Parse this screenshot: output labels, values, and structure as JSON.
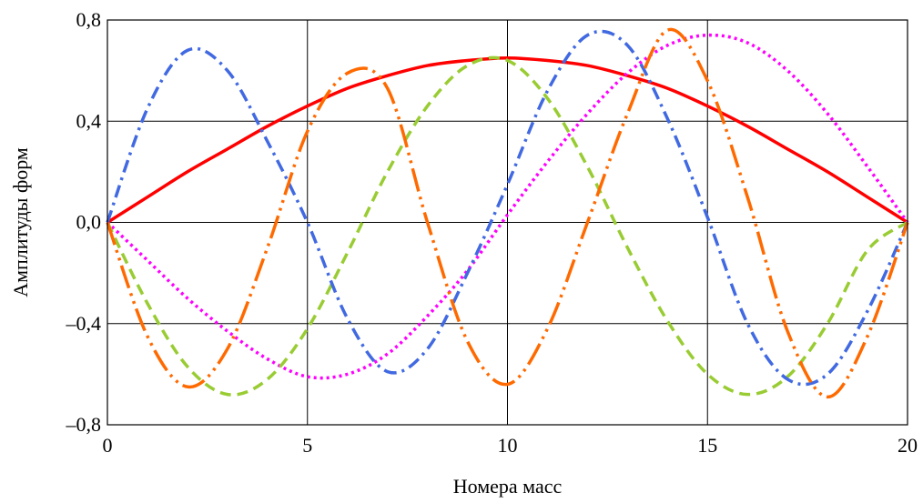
{
  "chart_data": {
    "type": "line",
    "title": "",
    "xlabel": "Номера масс",
    "ylabel": "Амплитуды форм",
    "xlim": [
      0,
      20
    ],
    "ylim": [
      -0.8,
      0.8
    ],
    "xticks": [
      0,
      5,
      10,
      15,
      20
    ],
    "xtick_labels": [
      "0",
      "5",
      "10",
      "15",
      "20"
    ],
    "yticks": [
      -0.8,
      -0.4,
      0.0,
      0.4,
      0.8
    ],
    "ytick_labels": [
      "–0,8",
      "–0,4",
      "0,0",
      "0,4",
      "0,8"
    ],
    "grid": true,
    "legend": "none",
    "x": [
      0,
      1,
      2,
      3,
      4,
      5,
      6,
      7,
      8,
      9,
      10,
      11,
      12,
      13,
      14,
      15,
      16,
      17,
      18,
      19,
      20
    ],
    "series": [
      {
        "color": "#ff0000",
        "dash": "solid",
        "values": [
          0.0,
          0.1,
          0.2,
          0.29,
          0.38,
          0.46,
          0.53,
          0.58,
          0.62,
          0.64,
          0.65,
          0.64,
          0.62,
          0.58,
          0.53,
          0.46,
          0.38,
          0.29,
          0.2,
          0.1,
          0.0
        ]
      },
      {
        "color": "#ff00ff",
        "dash": "dot",
        "values": [
          0.0,
          -0.15,
          -0.3,
          -0.43,
          -0.54,
          -0.61,
          -0.6,
          -0.52,
          -0.37,
          -0.19,
          0.03,
          0.24,
          0.43,
          0.59,
          0.7,
          0.74,
          0.71,
          0.6,
          0.43,
          0.22,
          0.0
        ]
      },
      {
        "color": "#99cc33",
        "dash": "dash",
        "values": [
          0.0,
          -0.32,
          -0.57,
          -0.68,
          -0.62,
          -0.42,
          -0.12,
          0.2,
          0.46,
          0.62,
          0.64,
          0.49,
          0.22,
          -0.1,
          -0.39,
          -0.6,
          -0.68,
          -0.61,
          -0.4,
          -0.11,
          0.0
        ]
      },
      {
        "color": "#4169e1",
        "dash": "dashdot",
        "values": [
          0.0,
          0.45,
          0.68,
          0.6,
          0.32,
          0.0,
          -0.38,
          -0.59,
          -0.5,
          -0.2,
          0.15,
          0.52,
          0.74,
          0.7,
          0.41,
          0.02,
          -0.4,
          -0.62,
          -0.6,
          -0.35,
          0.0
        ]
      },
      {
        "color": "#ff6a00",
        "dash": "longdashdotdot",
        "values": [
          0.0,
          -0.45,
          -0.65,
          -0.5,
          -0.1,
          0.36,
          0.59,
          0.53,
          0.0,
          -0.47,
          -0.64,
          -0.42,
          0.0,
          0.43,
          0.76,
          0.56,
          0.1,
          -0.43,
          -0.69,
          -0.45,
          0.0
        ]
      }
    ]
  }
}
